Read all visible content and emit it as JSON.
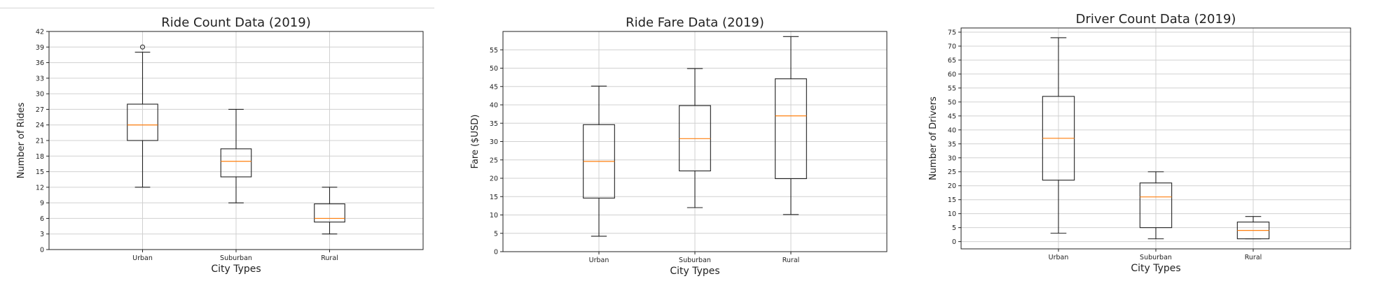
{
  "chart_data": [
    {
      "type": "box",
      "title": "Ride Count Data (2019)",
      "xlabel": "City Types",
      "ylabel": "Number of Rides",
      "categories": [
        "Urban",
        "Suburban",
        "Rural"
      ],
      "ylim": [
        0,
        42
      ],
      "yticks": [
        0,
        3,
        6,
        9,
        12,
        15,
        18,
        21,
        24,
        27,
        30,
        33,
        36,
        39,
        42
      ],
      "grid": true,
      "boxes": [
        {
          "min": 12,
          "q1": 21,
          "median": 24,
          "q3": 28,
          "max": 38,
          "outliers": [
            39
          ]
        },
        {
          "min": 9,
          "q1": 14,
          "median": 17,
          "q3": 19.4,
          "max": 27,
          "outliers": []
        },
        {
          "min": 3,
          "q1": 5.3,
          "median": 6,
          "q3": 8.8,
          "max": 12,
          "outliers": []
        }
      ]
    },
    {
      "type": "box",
      "title": "Ride Fare Data (2019)",
      "xlabel": "City Types",
      "ylabel": "Fare ($USD)",
      "categories": [
        "Urban",
        "Suburban",
        "Rural"
      ],
      "ylim": [
        0,
        60
      ],
      "yticks": [
        0,
        5,
        10,
        15,
        20,
        25,
        30,
        35,
        40,
        45,
        50,
        55
      ],
      "grid": true,
      "boxes": [
        {
          "min": 4.2,
          "q1": 14.6,
          "median": 24.6,
          "q3": 34.6,
          "max": 45.1,
          "outliers": []
        },
        {
          "min": 12,
          "q1": 22,
          "median": 30.8,
          "q3": 39.8,
          "max": 49.9,
          "outliers": []
        },
        {
          "min": 10.1,
          "q1": 19.9,
          "median": 37,
          "q3": 47.1,
          "max": 58.6,
          "outliers": []
        }
      ]
    },
    {
      "type": "box",
      "title": "Driver Count Data (2019)",
      "xlabel": "City Types",
      "ylabel": "Number of Drivers",
      "categories": [
        "Urban",
        "Suburban",
        "Rural"
      ],
      "ylim": [
        -2.6,
        76.5
      ],
      "yticks": [
        0,
        5,
        10,
        15,
        20,
        25,
        30,
        35,
        40,
        45,
        50,
        55,
        60,
        65,
        70,
        75
      ],
      "grid": true,
      "boxes": [
        {
          "min": 3,
          "q1": 22,
          "median": 37,
          "q3": 52,
          "max": 73,
          "outliers": []
        },
        {
          "min": 1,
          "q1": 5,
          "median": 16,
          "q3": 21,
          "max": 25,
          "outliers": []
        },
        {
          "min": 1,
          "q1": 1,
          "median": 4,
          "q3": 7,
          "max": 9,
          "outliers": []
        }
      ]
    }
  ],
  "colors": {
    "median": "#ff7f0e",
    "box": "#222222",
    "grid": "#d0d0d0"
  }
}
